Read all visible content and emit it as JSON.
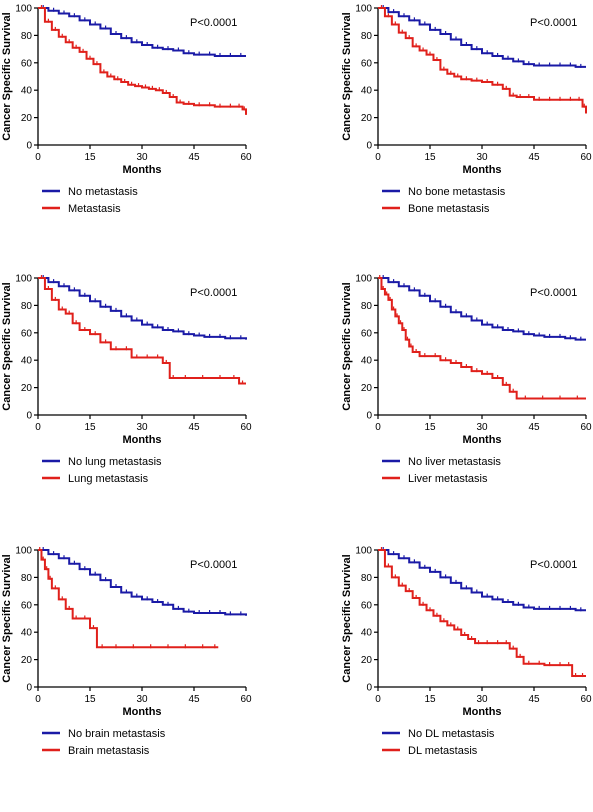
{
  "colors": {
    "no_group": "#1a1aa6",
    "group": "#e0201b",
    "axis": "#000000"
  },
  "chart_data": [
    {
      "type": "line",
      "ylabel": "Cancer Specific Survival",
      "xlabel": "Months",
      "xlim": [
        0,
        60
      ],
      "ylim": [
        0,
        100
      ],
      "xticks": [
        "0",
        "15",
        "30",
        "45",
        "60"
      ],
      "yticks": [
        "0",
        "20",
        "40",
        "60",
        "80",
        "100"
      ],
      "pvalue": "P<0.0001",
      "series": [
        {
          "name": "No metastasis",
          "color_key": "no_group",
          "x": [
            0,
            3,
            6,
            9,
            12,
            15,
            18,
            21,
            24,
            27,
            30,
            33,
            36,
            39,
            42,
            45,
            48,
            51,
            54,
            57,
            60
          ],
          "y": [
            100,
            98,
            96,
            94,
            91,
            88,
            85,
            81,
            78,
            75,
            73,
            71,
            70,
            69,
            67,
            66,
            66,
            65,
            65,
            65,
            65
          ]
        },
        {
          "name": "Metastasis",
          "color_key": "group",
          "x": [
            0,
            2,
            4,
            6,
            8,
            10,
            12,
            14,
            16,
            18,
            20,
            22,
            24,
            26,
            28,
            30,
            32,
            34,
            36,
            38,
            40,
            42,
            45,
            48,
            51,
            54,
            57,
            59,
            60
          ],
          "y": [
            100,
            90,
            84,
            79,
            75,
            71,
            68,
            63,
            59,
            53,
            50,
            48,
            46,
            44,
            43,
            42,
            41,
            40,
            38,
            35,
            31,
            30,
            29,
            29,
            28,
            28,
            28,
            26,
            22
          ]
        }
      ]
    },
    {
      "type": "line",
      "ylabel": "Cancer Specific Survival",
      "xlabel": "Months",
      "xlim": [
        0,
        60
      ],
      "ylim": [
        0,
        100
      ],
      "xticks": [
        "0",
        "15",
        "30",
        "45",
        "60"
      ],
      "yticks": [
        "0",
        "20",
        "40",
        "60",
        "80",
        "100"
      ],
      "pvalue": "P<0.0001",
      "series": [
        {
          "name": "No bone metastasis",
          "color_key": "no_group",
          "x": [
            0,
            3,
            6,
            9,
            12,
            15,
            18,
            21,
            24,
            27,
            30,
            33,
            36,
            39,
            42,
            45,
            48,
            51,
            54,
            57,
            60
          ],
          "y": [
            100,
            97,
            94,
            91,
            88,
            84,
            81,
            77,
            73,
            70,
            67,
            65,
            63,
            61,
            59,
            58,
            58,
            58,
            58,
            57,
            57
          ]
        },
        {
          "name": "Bone metastasis",
          "color_key": "group",
          "x": [
            0,
            2,
            4,
            6,
            8,
            10,
            12,
            14,
            16,
            18,
            20,
            22,
            24,
            27,
            30,
            33,
            36,
            38,
            40,
            42,
            45,
            48,
            51,
            54,
            57,
            59,
            60
          ],
          "y": [
            100,
            94,
            88,
            82,
            78,
            72,
            69,
            66,
            62,
            55,
            52,
            50,
            48,
            47,
            46,
            44,
            41,
            36,
            35,
            35,
            33,
            33,
            33,
            33,
            33,
            28,
            23
          ]
        }
      ]
    },
    {
      "type": "line",
      "ylabel": "Cancer Specific Survival",
      "xlabel": "Months",
      "xlim": [
        0,
        60
      ],
      "ylim": [
        0,
        100
      ],
      "xticks": [
        "0",
        "15",
        "30",
        "45",
        "60"
      ],
      "yticks": [
        "0",
        "20",
        "40",
        "60",
        "80",
        "100"
      ],
      "pvalue": "P<0.0001",
      "series": [
        {
          "name": "No lung metastasis",
          "color_key": "no_group",
          "x": [
            0,
            3,
            6,
            9,
            12,
            15,
            18,
            21,
            24,
            27,
            30,
            33,
            36,
            39,
            42,
            45,
            48,
            51,
            54,
            57,
            60
          ],
          "y": [
            100,
            97,
            94,
            91,
            87,
            83,
            79,
            76,
            72,
            69,
            66,
            64,
            62,
            61,
            59,
            58,
            57,
            57,
            56,
            56,
            55
          ]
        },
        {
          "name": "Lung metastasis",
          "color_key": "group",
          "x": [
            0,
            2,
            4,
            6,
            8,
            10,
            12,
            15,
            18,
            21,
            24,
            27,
            30,
            33,
            36,
            38,
            40,
            45,
            50,
            55,
            58,
            60
          ],
          "y": [
            100,
            92,
            84,
            77,
            74,
            67,
            62,
            59,
            53,
            48,
            48,
            42,
            42,
            42,
            38,
            27,
            27,
            27,
            27,
            27,
            23,
            23
          ]
        }
      ]
    },
    {
      "type": "line",
      "ylabel": "Cancer Specific Survival",
      "xlabel": "Months",
      "xlim": [
        0,
        60
      ],
      "ylim": [
        0,
        100
      ],
      "xticks": [
        "0",
        "15",
        "30",
        "45",
        "60"
      ],
      "yticks": [
        "0",
        "20",
        "40",
        "60",
        "80",
        "100"
      ],
      "pvalue": "P<0.0001",
      "series": [
        {
          "name": "No liver metastasis",
          "color_key": "no_group",
          "x": [
            0,
            3,
            6,
            9,
            12,
            15,
            18,
            21,
            24,
            27,
            30,
            33,
            36,
            39,
            42,
            45,
            48,
            51,
            54,
            57,
            60
          ],
          "y": [
            100,
            97,
            94,
            91,
            87,
            83,
            79,
            75,
            72,
            69,
            66,
            64,
            62,
            61,
            59,
            58,
            57,
            57,
            56,
            55,
            55
          ]
        },
        {
          "name": "Liver metastasis",
          "color_key": "group",
          "x": [
            0,
            1,
            2,
            3,
            4,
            5,
            6,
            7,
            8,
            9,
            10,
            12,
            15,
            18,
            21,
            24,
            27,
            30,
            33,
            36,
            38,
            40,
            45,
            50,
            55,
            60
          ],
          "y": [
            100,
            92,
            88,
            84,
            77,
            72,
            67,
            62,
            55,
            50,
            46,
            43,
            43,
            40,
            38,
            35,
            32,
            30,
            27,
            22,
            17,
            12,
            12,
            12,
            12,
            12
          ]
        }
      ]
    },
    {
      "type": "line",
      "ylabel": "Cancer Specific Survival",
      "xlabel": "Months",
      "xlim": [
        0,
        60
      ],
      "ylim": [
        0,
        100
      ],
      "xticks": [
        "0",
        "15",
        "30",
        "45",
        "60"
      ],
      "yticks": [
        "0",
        "20",
        "40",
        "60",
        "80",
        "100"
      ],
      "pvalue": "P<0.0001",
      "series": [
        {
          "name": "No brain metastasis",
          "color_key": "no_group",
          "x": [
            0,
            3,
            6,
            9,
            12,
            15,
            18,
            21,
            24,
            27,
            30,
            33,
            36,
            39,
            42,
            45,
            48,
            51,
            54,
            57,
            60
          ],
          "y": [
            100,
            97,
            94,
            90,
            86,
            82,
            78,
            73,
            69,
            66,
            64,
            62,
            60,
            57,
            55,
            54,
            54,
            54,
            53,
            53,
            52
          ]
        },
        {
          "name": "Brain metastasis",
          "color_key": "group",
          "x": [
            0,
            1,
            2,
            3,
            4,
            6,
            8,
            10,
            12,
            15,
            17,
            20,
            25,
            30,
            35,
            40,
            45,
            50,
            52
          ],
          "y": [
            100,
            93,
            86,
            79,
            72,
            64,
            57,
            50,
            50,
            43,
            29,
            29,
            29,
            29,
            29,
            29,
            29,
            29,
            29
          ]
        }
      ]
    },
    {
      "type": "line",
      "ylabel": "Cancer Specific Survival",
      "xlabel": "Months",
      "xlim": [
        0,
        60
      ],
      "ylim": [
        0,
        100
      ],
      "xticks": [
        "0",
        "15",
        "30",
        "45",
        "60"
      ],
      "yticks": [
        "0",
        "20",
        "40",
        "60",
        "80",
        "100"
      ],
      "pvalue": "P<0.0001",
      "series": [
        {
          "name": "No DL metastasis",
          "color_key": "no_group",
          "x": [
            0,
            3,
            6,
            9,
            12,
            15,
            18,
            21,
            24,
            27,
            30,
            33,
            36,
            39,
            42,
            45,
            48,
            51,
            54,
            57,
            60
          ],
          "y": [
            100,
            97,
            94,
            91,
            87,
            84,
            80,
            76,
            72,
            69,
            66,
            64,
            62,
            60,
            58,
            57,
            57,
            57,
            57,
            56,
            56
          ]
        },
        {
          "name": "DL metastasis",
          "color_key": "group",
          "x": [
            0,
            2,
            4,
            6,
            8,
            10,
            12,
            14,
            16,
            18,
            20,
            22,
            24,
            26,
            28,
            30,
            33,
            36,
            38,
            40,
            42,
            45,
            48,
            51,
            54,
            56,
            58,
            60
          ],
          "y": [
            100,
            88,
            80,
            74,
            70,
            65,
            60,
            56,
            52,
            48,
            45,
            42,
            38,
            35,
            32,
            32,
            32,
            32,
            28,
            22,
            17,
            17,
            16,
            16,
            16,
            8,
            8,
            8
          ]
        }
      ]
    }
  ]
}
